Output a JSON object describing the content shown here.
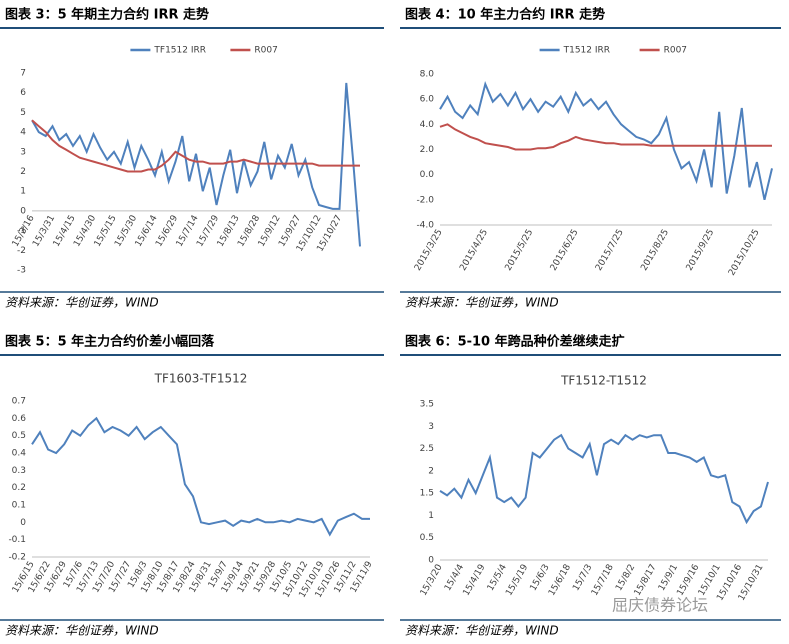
{
  "chart_data": [
    {
      "type": "line",
      "heading": "图表 3：5 年期主力合约 IRR 走势",
      "source": "资料来源：华创证券，WIND",
      "categories": [
        "15/3/16",
        null,
        null,
        "15/3/31",
        null,
        null,
        "15/4/15",
        null,
        null,
        "15/4/30",
        null,
        null,
        "15/5/15",
        null,
        null,
        "15/5/30",
        null,
        null,
        "15/6/14",
        null,
        null,
        "15/6/29",
        null,
        null,
        "15/7/14",
        null,
        null,
        "15/7/29",
        null,
        null,
        "15/8/13",
        null,
        null,
        "15/8/28",
        null,
        null,
        "15/9/12",
        null,
        null,
        "15/9/27",
        null,
        null,
        "15/10/12",
        null,
        null,
        "15/10/27",
        null,
        null,
        null
      ],
      "series": [
        {
          "name": "TF1512 IRR",
          "color": "#4f81bd",
          "values": [
            4.6,
            4.0,
            3.8,
            4.3,
            3.6,
            3.9,
            3.3,
            3.8,
            3.0,
            3.9,
            3.2,
            2.6,
            3.0,
            2.4,
            3.5,
            2.2,
            3.3,
            2.6,
            1.8,
            3.0,
            1.5,
            2.5,
            3.8,
            1.5,
            2.9,
            1.0,
            2.2,
            0.3,
            1.8,
            3.1,
            0.9,
            2.6,
            1.3,
            2.0,
            3.5,
            1.6,
            2.8,
            2.2,
            3.4,
            1.8,
            2.6,
            1.2,
            0.3,
            0.2,
            0.1,
            0.1,
            6.5,
            2.5,
            -1.8
          ]
        },
        {
          "name": "R007",
          "color": "#c0504d",
          "values": [
            4.6,
            4.3,
            4.0,
            3.6,
            3.3,
            3.1,
            2.9,
            2.7,
            2.6,
            2.5,
            2.4,
            2.3,
            2.2,
            2.1,
            2.0,
            2.0,
            2.0,
            2.1,
            2.1,
            2.3,
            2.6,
            3.0,
            2.8,
            2.6,
            2.5,
            2.5,
            2.4,
            2.4,
            2.4,
            2.5,
            2.5,
            2.6,
            2.5,
            2.4,
            2.4,
            2.4,
            2.4,
            2.4,
            2.4,
            2.4,
            2.4,
            2.4,
            2.3,
            2.3,
            2.3,
            2.3,
            2.3,
            2.3,
            2.3
          ]
        }
      ],
      "ylim": [
        -3,
        7
      ],
      "yticks": [
        -3,
        -2,
        -1,
        0,
        1,
        2,
        3,
        4,
        5,
        6,
        7
      ],
      "x_axis_at": 0,
      "legend": "top",
      "grid": false
    },
    {
      "type": "line",
      "heading": "图表 4：10 年主力合约 IRR 走势",
      "source": "资料来源：华创证券，WIND",
      "categories": [
        "2015/3/25",
        null,
        null,
        null,
        null,
        null,
        "2015/4/25",
        null,
        null,
        null,
        null,
        null,
        "2015/5/25",
        null,
        null,
        null,
        null,
        null,
        "2015/6/25",
        null,
        null,
        null,
        null,
        null,
        "2015/7/25",
        null,
        null,
        null,
        null,
        null,
        "2015/8/25",
        null,
        null,
        null,
        null,
        null,
        "2015/9/25",
        null,
        null,
        null,
        null,
        null,
        "2015/10/25",
        null,
        null
      ],
      "series": [
        {
          "name": "T1512 IRR",
          "color": "#4f81bd",
          "values": [
            5.2,
            6.2,
            5.0,
            4.5,
            5.5,
            4.8,
            7.2,
            5.8,
            6.4,
            5.5,
            6.5,
            5.2,
            6.0,
            5.0,
            5.8,
            5.4,
            6.2,
            5.0,
            6.5,
            5.5,
            6.0,
            5.2,
            5.8,
            4.8,
            4.0,
            3.5,
            3.0,
            2.8,
            2.5,
            3.2,
            4.5,
            2.0,
            0.5,
            1.0,
            -0.5,
            2.0,
            -1.0,
            5.0,
            -1.5,
            1.5,
            5.3,
            -1.0,
            1.0,
            -2.0,
            0.5
          ]
        },
        {
          "name": "R007",
          "color": "#c0504d",
          "values": [
            3.8,
            4.0,
            3.6,
            3.3,
            3.0,
            2.8,
            2.5,
            2.4,
            2.3,
            2.2,
            2.0,
            2.0,
            2.0,
            2.1,
            2.1,
            2.2,
            2.5,
            2.7,
            3.0,
            2.8,
            2.7,
            2.6,
            2.5,
            2.5,
            2.4,
            2.4,
            2.4,
            2.4,
            2.3,
            2.3,
            2.3,
            2.3,
            2.3,
            2.3,
            2.3,
            2.3,
            2.3,
            2.3,
            2.3,
            2.3,
            2.3,
            2.3,
            2.3,
            2.3,
            2.3
          ]
        }
      ],
      "ylim": [
        -4,
        8
      ],
      "yticks": [
        {
          "value": -4,
          "label": "-4.0"
        },
        {
          "value": -2,
          "label": "-2.0"
        },
        {
          "value": 0,
          "label": "0.0"
        },
        {
          "value": 2,
          "label": "2.0"
        },
        {
          "value": 4,
          "label": "4.0"
        },
        {
          "value": 6,
          "label": "6.0"
        },
        {
          "value": 8,
          "label": "8.0"
        }
      ],
      "legend": "top",
      "grid": false
    },
    {
      "type": "line",
      "heading": "图表 5：5 年主力合约价差小幅回落",
      "title": "TF1603-TF1512",
      "source": "资料来源：华创证券，WIND",
      "categories": [
        "15/6/15",
        null,
        "15/6/22",
        null,
        "15/6/29",
        null,
        "15/7/6",
        null,
        "15/7/13",
        null,
        "15/7/20",
        null,
        "15/7/27",
        null,
        "15/8/3",
        null,
        "15/8/10",
        null,
        "15/8/17",
        null,
        "15/8/24",
        null,
        "15/8/31",
        null,
        "15/9/7",
        null,
        "15/9/14",
        null,
        "15/9/21",
        null,
        "15/9/28",
        null,
        "15/10/5",
        null,
        "15/10/12",
        null,
        "15/10/19",
        null,
        "15/10/26",
        null,
        "15/11/2",
        null,
        "15/11/9"
      ],
      "series": [
        {
          "name": "TF1603-TF1512",
          "color": "#4f81bd",
          "values": [
            0.45,
            0.52,
            0.42,
            0.4,
            0.45,
            0.53,
            0.5,
            0.56,
            0.6,
            0.52,
            0.55,
            0.53,
            0.5,
            0.55,
            0.48,
            0.52,
            0.55,
            0.5,
            0.45,
            0.22,
            0.15,
            0.0,
            -0.01,
            0.0,
            0.01,
            -0.02,
            0.01,
            0.0,
            0.02,
            0.0,
            0.0,
            0.01,
            0.0,
            0.02,
            0.01,
            0.0,
            0.02,
            -0.07,
            0.01,
            0.03,
            0.05,
            0.02,
            0.02
          ]
        }
      ],
      "ylim": [
        -0.2,
        0.7
      ],
      "yticks": [
        -0.2,
        -0.1,
        0,
        0.1,
        0.2,
        0.3,
        0.4,
        0.5,
        0.6,
        0.7
      ],
      "grid": false
    },
    {
      "type": "line",
      "heading": "图表 6：5-10 年跨品种价差继续走扩",
      "title": "TF1512-T1512",
      "source": "资料来源：华创证券，WIND",
      "categories": [
        "15/3/20",
        null,
        null,
        "15/4/4",
        null,
        null,
        "15/4/19",
        null,
        null,
        "15/5/4",
        null,
        null,
        "15/5/19",
        null,
        null,
        "15/6/3",
        null,
        null,
        "15/6/18",
        null,
        null,
        "15/7/3",
        null,
        null,
        "15/7/18",
        null,
        null,
        "15/8/2",
        null,
        null,
        "15/8/17",
        null,
        null,
        "15/9/1",
        null,
        null,
        "15/9/16",
        null,
        null,
        "15/10/1",
        null,
        null,
        "15/10/16",
        null,
        null,
        "15/10/31",
        null
      ],
      "series": [
        {
          "name": "TF1512-T1512",
          "color": "#4f81bd",
          "values": [
            1.55,
            1.45,
            1.6,
            1.4,
            1.8,
            1.5,
            1.9,
            2.3,
            1.4,
            1.3,
            1.4,
            1.2,
            1.4,
            2.4,
            2.3,
            2.5,
            2.7,
            2.8,
            2.5,
            2.4,
            2.3,
            2.6,
            1.9,
            2.6,
            2.7,
            2.6,
            2.8,
            2.7,
            2.8,
            2.75,
            2.8,
            2.8,
            2.4,
            2.4,
            2.35,
            2.3,
            2.2,
            2.3,
            1.9,
            1.85,
            1.9,
            1.3,
            1.2,
            0.85,
            1.1,
            1.2,
            1.75
          ]
        }
      ],
      "ylim": [
        0,
        3.5
      ],
      "yticks": [
        0,
        0.5,
        1,
        1.5,
        2,
        2.5,
        3,
        3.5
      ],
      "grid": false
    }
  ],
  "watermark": "屈庆债券论坛"
}
